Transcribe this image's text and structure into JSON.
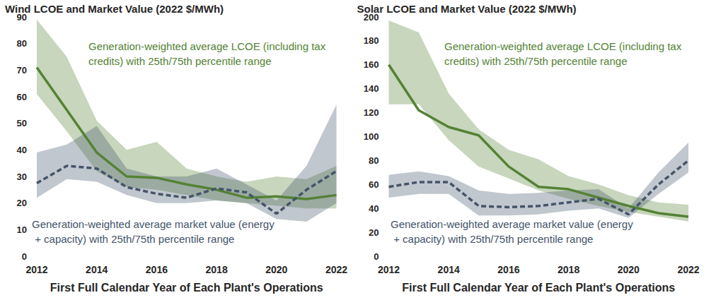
{
  "chart_data": [
    {
      "type": "line",
      "title": "Wind LCOE and Market Value (2022 $/MWh)",
      "x_label": "First Full Calendar Year of Each Plant's Operations",
      "x": [
        2012,
        2013,
        2014,
        2015,
        2016,
        2017,
        2018,
        2019,
        2020,
        2021,
        2022
      ],
      "xlim": [
        2012,
        2022
      ],
      "xticks": [
        2012,
        2014,
        2016,
        2018,
        2020,
        2022
      ],
      "ylim": [
        0,
        90
      ],
      "yticks": [
        0,
        10,
        20,
        30,
        40,
        50,
        60,
        70,
        80,
        90
      ],
      "grid": false,
      "series": [
        {
          "name": "Generation-weighted average LCOE (including tax credits) with 25th/75th percentile range",
          "color": "#548235",
          "line_style": "solid",
          "values": [
            71,
            55,
            39,
            30,
            29.5,
            27,
            25,
            22,
            22.5,
            21.5,
            23
          ],
          "p25": [
            61,
            47,
            32,
            26,
            25,
            23,
            21,
            20,
            19,
            18,
            18
          ],
          "p75": [
            89,
            75,
            51,
            40,
            43,
            33,
            30,
            28,
            30,
            29,
            34
          ]
        },
        {
          "name": "Generation-weighted average market value (energy + capacity) with 25th/75th percentile range",
          "color": "#44546a",
          "line_style": "dashed",
          "values": [
            27.5,
            34,
            33,
            26,
            23.5,
            22,
            25.5,
            24,
            16,
            25,
            32
          ],
          "p25": [
            22,
            29,
            28,
            23,
            20,
            20,
            21,
            20,
            14,
            13,
            20
          ],
          "p75": [
            39,
            42,
            49,
            33,
            30,
            30,
            33,
            27,
            21,
            34,
            57
          ]
        }
      ]
    },
    {
      "type": "line",
      "title": "Solar LCOE and Market Value (2022 $/MWh)",
      "x_label": "First Full Calendar Year of Each Plant's Operations",
      "x": [
        2012,
        2013,
        2014,
        2015,
        2016,
        2017,
        2018,
        2019,
        2020,
        2021,
        2022
      ],
      "xlim": [
        2012,
        2022
      ],
      "xticks": [
        2012,
        2014,
        2016,
        2018,
        2020,
        2022
      ],
      "ylim": [
        0,
        200
      ],
      "yticks": [
        0,
        20,
        40,
        60,
        80,
        100,
        120,
        140,
        160,
        180,
        200
      ],
      "grid": false,
      "series": [
        {
          "name": "Generation-weighted average LCOE (including tax credits) with 25th/75th percentile range",
          "color": "#548235",
          "line_style": "solid",
          "values": [
            160,
            122,
            108,
            101,
            75,
            58,
            56,
            49,
            42,
            36,
            33
          ],
          "p25": [
            127,
            127,
            97,
            75,
            65,
            55,
            48,
            42,
            37,
            33,
            29
          ],
          "p75": [
            197,
            187,
            136,
            106,
            89,
            81,
            67,
            60,
            51,
            45,
            43
          ]
        },
        {
          "name": "Generation-weighted average market value (energy + capacity) with 25th/75th percentile range",
          "color": "#44546a",
          "line_style": "dashed",
          "values": [
            58,
            62,
            62,
            42,
            41,
            42,
            45,
            48,
            35,
            60,
            80
          ],
          "p25": [
            49,
            52,
            52,
            34,
            34,
            35,
            38,
            40,
            32,
            52,
            70
          ],
          "p75": [
            68,
            71,
            67,
            55,
            52,
            53,
            55,
            56,
            40,
            70,
            95
          ]
        }
      ]
    }
  ]
}
